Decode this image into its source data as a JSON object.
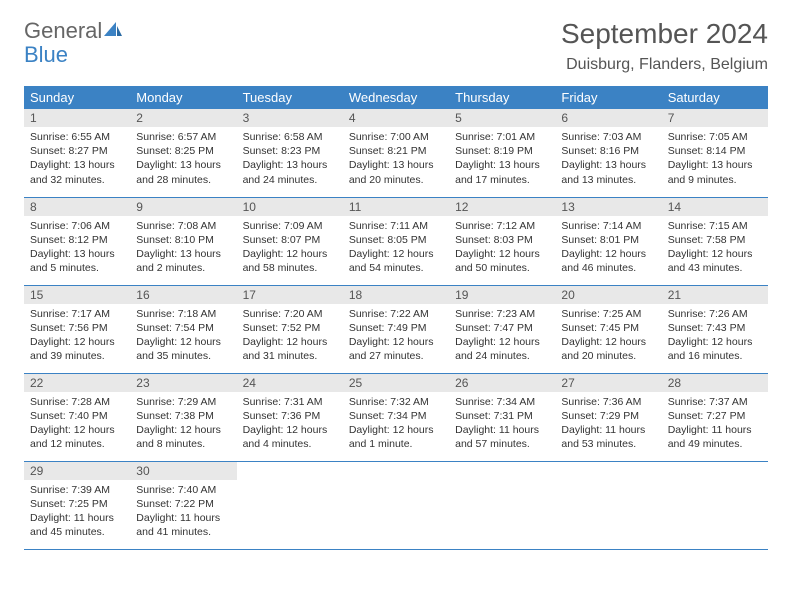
{
  "logo": {
    "text1": "General",
    "text2": "Blue"
  },
  "title": "September 2024",
  "location": "Duisburg, Flanders, Belgium",
  "colors": {
    "header_bg": "#3b82c4",
    "header_text": "#ffffff",
    "daynum_bg": "#e8e8e8",
    "text": "#333333",
    "border": "#3b82c4"
  },
  "weekdays": [
    "Sunday",
    "Monday",
    "Tuesday",
    "Wednesday",
    "Thursday",
    "Friday",
    "Saturday"
  ],
  "days": [
    {
      "n": "1",
      "sr": "6:55 AM",
      "ss": "8:27 PM",
      "dl": "13 hours and 32 minutes."
    },
    {
      "n": "2",
      "sr": "6:57 AM",
      "ss": "8:25 PM",
      "dl": "13 hours and 28 minutes."
    },
    {
      "n": "3",
      "sr": "6:58 AM",
      "ss": "8:23 PM",
      "dl": "13 hours and 24 minutes."
    },
    {
      "n": "4",
      "sr": "7:00 AM",
      "ss": "8:21 PM",
      "dl": "13 hours and 20 minutes."
    },
    {
      "n": "5",
      "sr": "7:01 AM",
      "ss": "8:19 PM",
      "dl": "13 hours and 17 minutes."
    },
    {
      "n": "6",
      "sr": "7:03 AM",
      "ss": "8:16 PM",
      "dl": "13 hours and 13 minutes."
    },
    {
      "n": "7",
      "sr": "7:05 AM",
      "ss": "8:14 PM",
      "dl": "13 hours and 9 minutes."
    },
    {
      "n": "8",
      "sr": "7:06 AM",
      "ss": "8:12 PM",
      "dl": "13 hours and 5 minutes."
    },
    {
      "n": "9",
      "sr": "7:08 AM",
      "ss": "8:10 PM",
      "dl": "13 hours and 2 minutes."
    },
    {
      "n": "10",
      "sr": "7:09 AM",
      "ss": "8:07 PM",
      "dl": "12 hours and 58 minutes."
    },
    {
      "n": "11",
      "sr": "7:11 AM",
      "ss": "8:05 PM",
      "dl": "12 hours and 54 minutes."
    },
    {
      "n": "12",
      "sr": "7:12 AM",
      "ss": "8:03 PM",
      "dl": "12 hours and 50 minutes."
    },
    {
      "n": "13",
      "sr": "7:14 AM",
      "ss": "8:01 PM",
      "dl": "12 hours and 46 minutes."
    },
    {
      "n": "14",
      "sr": "7:15 AM",
      "ss": "7:58 PM",
      "dl": "12 hours and 43 minutes."
    },
    {
      "n": "15",
      "sr": "7:17 AM",
      "ss": "7:56 PM",
      "dl": "12 hours and 39 minutes."
    },
    {
      "n": "16",
      "sr": "7:18 AM",
      "ss": "7:54 PM",
      "dl": "12 hours and 35 minutes."
    },
    {
      "n": "17",
      "sr": "7:20 AM",
      "ss": "7:52 PM",
      "dl": "12 hours and 31 minutes."
    },
    {
      "n": "18",
      "sr": "7:22 AM",
      "ss": "7:49 PM",
      "dl": "12 hours and 27 minutes."
    },
    {
      "n": "19",
      "sr": "7:23 AM",
      "ss": "7:47 PM",
      "dl": "12 hours and 24 minutes."
    },
    {
      "n": "20",
      "sr": "7:25 AM",
      "ss": "7:45 PM",
      "dl": "12 hours and 20 minutes."
    },
    {
      "n": "21",
      "sr": "7:26 AM",
      "ss": "7:43 PM",
      "dl": "12 hours and 16 minutes."
    },
    {
      "n": "22",
      "sr": "7:28 AM",
      "ss": "7:40 PM",
      "dl": "12 hours and 12 minutes."
    },
    {
      "n": "23",
      "sr": "7:29 AM",
      "ss": "7:38 PM",
      "dl": "12 hours and 8 minutes."
    },
    {
      "n": "24",
      "sr": "7:31 AM",
      "ss": "7:36 PM",
      "dl": "12 hours and 4 minutes."
    },
    {
      "n": "25",
      "sr": "7:32 AM",
      "ss": "7:34 PM",
      "dl": "12 hours and 1 minute."
    },
    {
      "n": "26",
      "sr": "7:34 AM",
      "ss": "7:31 PM",
      "dl": "11 hours and 57 minutes."
    },
    {
      "n": "27",
      "sr": "7:36 AM",
      "ss": "7:29 PM",
      "dl": "11 hours and 53 minutes."
    },
    {
      "n": "28",
      "sr": "7:37 AM",
      "ss": "7:27 PM",
      "dl": "11 hours and 49 minutes."
    },
    {
      "n": "29",
      "sr": "7:39 AM",
      "ss": "7:25 PM",
      "dl": "11 hours and 45 minutes."
    },
    {
      "n": "30",
      "sr": "7:40 AM",
      "ss": "7:22 PM",
      "dl": "11 hours and 41 minutes."
    }
  ],
  "labels": {
    "sunrise": "Sunrise: ",
    "sunset": "Sunset: ",
    "daylight": "Daylight: "
  }
}
